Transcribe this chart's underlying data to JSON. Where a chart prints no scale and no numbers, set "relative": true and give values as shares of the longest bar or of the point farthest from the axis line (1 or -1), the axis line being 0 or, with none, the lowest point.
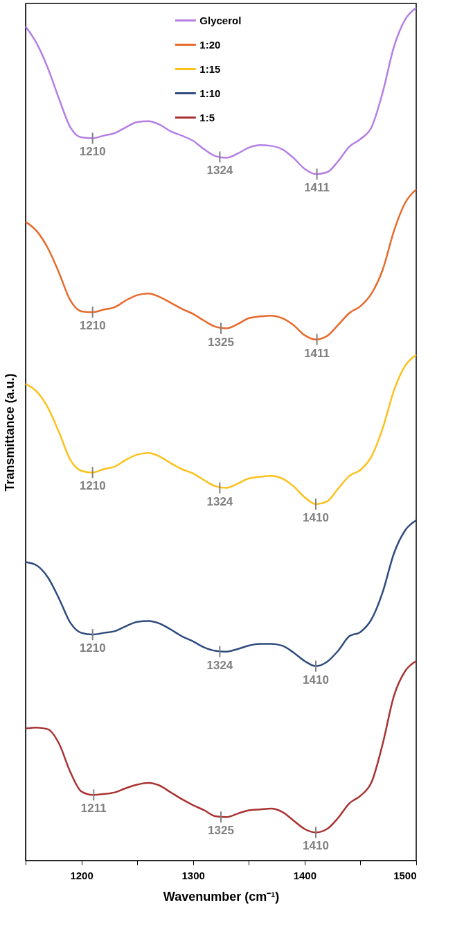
{
  "chart_data": {
    "type": "line",
    "relative": true,
    "xlabel": "Wavenumber (cm⁻¹)",
    "ylabel": "Transmittance (a.u.)",
    "x": [
      1150,
      1160,
      1170,
      1180,
      1190,
      1200,
      1210,
      1220,
      1230,
      1240,
      1250,
      1260,
      1270,
      1280,
      1290,
      1300,
      1310,
      1320,
      1330,
      1340,
      1350,
      1360,
      1370,
      1380,
      1390,
      1400,
      1410,
      1420,
      1430,
      1440,
      1450,
      1460,
      1470,
      1480,
      1490,
      1500
    ],
    "xlim": [
      1150,
      1500
    ],
    "xticks": [
      {
        "value": 1150,
        "label": null
      },
      1200,
      {
        "value": 1250,
        "label": null
      },
      1300,
      {
        "value": 1350,
        "label": null
      },
      1400,
      {
        "value": 1450,
        "label": null
      },
      1500
    ],
    "tick_labels": "x",
    "grid": false,
    "legend": "top",
    "line_style": "solid",
    "marker": "none",
    "series": [
      {
        "name": "Glycerol",
        "color": "#b57ee5",
        "values": [
          0.978,
          0.958,
          0.929,
          0.893,
          0.86,
          0.848,
          0.847,
          0.85,
          0.853,
          0.86,
          0.866,
          0.867,
          0.863,
          0.855,
          0.85,
          0.844,
          0.834,
          0.826,
          0.824,
          0.829,
          0.836,
          0.839,
          0.838,
          0.834,
          0.824,
          0.811,
          0.805,
          0.807,
          0.82,
          0.837,
          0.846,
          0.86,
          0.901,
          0.954,
          0.986,
          1.0
        ]
      },
      {
        "name": "1:20",
        "color": "#e8692a",
        "values": [
          0.749,
          0.738,
          0.718,
          0.689,
          0.657,
          0.644,
          0.643,
          0.646,
          0.649,
          0.657,
          0.663,
          0.665,
          0.661,
          0.654,
          0.647,
          0.641,
          0.633,
          0.626,
          0.624,
          0.629,
          0.636,
          0.638,
          0.639,
          0.636,
          0.628,
          0.616,
          0.611,
          0.615,
          0.628,
          0.642,
          0.65,
          0.665,
          0.693,
          0.738,
          0.771,
          0.787
        ]
      },
      {
        "name": "1:15",
        "color": "#fcc11c",
        "values": [
          0.559,
          0.55,
          0.531,
          0.502,
          0.47,
          0.457,
          0.455,
          0.459,
          0.462,
          0.47,
          0.476,
          0.478,
          0.474,
          0.466,
          0.459,
          0.454,
          0.446,
          0.439,
          0.437,
          0.442,
          0.448,
          0.45,
          0.451,
          0.448,
          0.439,
          0.426,
          0.418,
          0.421,
          0.436,
          0.451,
          0.458,
          0.474,
          0.507,
          0.551,
          0.58,
          0.593
        ]
      },
      {
        "name": "1:10",
        "color": "#2e4b7e",
        "values": [
          0.35,
          0.346,
          0.332,
          0.307,
          0.279,
          0.267,
          0.265,
          0.267,
          0.269,
          0.275,
          0.28,
          0.281,
          0.278,
          0.271,
          0.263,
          0.257,
          0.25,
          0.246,
          0.245,
          0.248,
          0.252,
          0.254,
          0.254,
          0.252,
          0.244,
          0.234,
          0.228,
          0.233,
          0.246,
          0.263,
          0.268,
          0.283,
          0.315,
          0.36,
          0.387,
          0.399
        ]
      },
      {
        "name": "1:5",
        "color": "#a83232",
        "values": [
          0.155,
          0.156,
          0.154,
          0.137,
          0.104,
          0.081,
          0.077,
          0.078,
          0.08,
          0.085,
          0.089,
          0.091,
          0.088,
          0.08,
          0.072,
          0.065,
          0.059,
          0.052,
          0.051,
          0.055,
          0.059,
          0.06,
          0.061,
          0.057,
          0.047,
          0.037,
          0.033,
          0.037,
          0.05,
          0.067,
          0.076,
          0.092,
          0.137,
          0.193,
          0.222,
          0.234
        ]
      }
    ],
    "annotations": [
      {
        "text": "1210",
        "x": 1210,
        "y": 0.847
      },
      {
        "text": "1324",
        "x": 1324,
        "y": 0.825
      },
      {
        "text": "1411",
        "x": 1411,
        "y": 0.805
      },
      {
        "text": "1210",
        "x": 1210,
        "y": 0.643
      },
      {
        "text": "1325",
        "x": 1325,
        "y": 0.624
      },
      {
        "text": "1411",
        "x": 1411,
        "y": 0.611
      },
      {
        "text": "1210",
        "x": 1210,
        "y": 0.455
      },
      {
        "text": "1324",
        "x": 1324,
        "y": 0.437
      },
      {
        "text": "1410",
        "x": 1410,
        "y": 0.418
      },
      {
        "text": "1210",
        "x": 1210,
        "y": 0.265
      },
      {
        "text": "1324",
        "x": 1324,
        "y": 0.245
      },
      {
        "text": "1410",
        "x": 1410,
        "y": 0.228
      },
      {
        "text": "1211",
        "x": 1211,
        "y": 0.077
      },
      {
        "text": "1325",
        "x": 1325,
        "y": 0.051
      },
      {
        "text": "1410",
        "x": 1410,
        "y": 0.033
      }
    ]
  }
}
